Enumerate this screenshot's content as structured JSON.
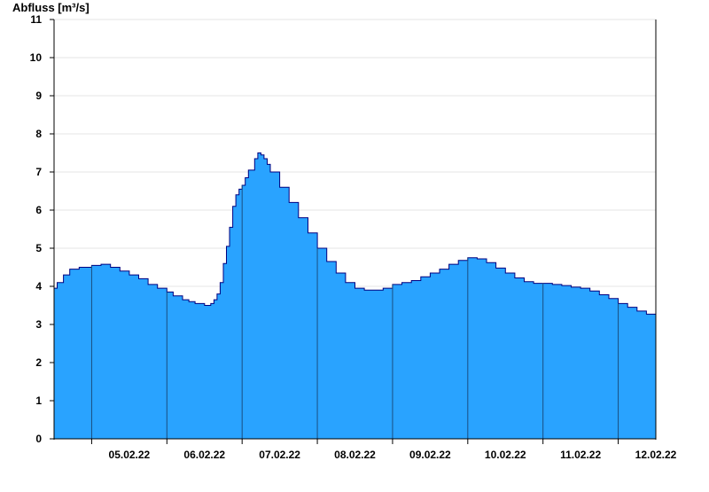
{
  "chart_data": {
    "type": "area",
    "title": "",
    "xlabel": "",
    "ylabel": "Abfluss [m³/s]",
    "ylim": [
      0,
      11
    ],
    "yticks": [
      "0",
      "1",
      "2",
      "3",
      "4",
      "5",
      "6",
      "7",
      "8",
      "9",
      "10",
      "11"
    ],
    "xlim": [
      "2022-02-04T12:00",
      "2022-02-12T12:00"
    ],
    "day_boundaries": [
      "2022-02-05T00:00",
      "2022-02-06T00:00",
      "2022-02-07T00:00",
      "2022-02-08T00:00",
      "2022-02-09T00:00",
      "2022-02-10T00:00",
      "2022-02-11T00:00",
      "2022-02-12T00:00"
    ],
    "xtick_labels": [
      {
        "date": "2022-02-05T00:00",
        "label": "05.02.22"
      },
      {
        "date": "2022-02-06T00:00",
        "label": "06.02.22"
      },
      {
        "date": "2022-02-07T00:00",
        "label": "07.02.22"
      },
      {
        "date": "2022-02-08T00:00",
        "label": "08.02.22"
      },
      {
        "date": "2022-02-09T00:00",
        "label": "09.02.22"
      },
      {
        "date": "2022-02-10T00:00",
        "label": "10.02.22"
      },
      {
        "date": "2022-02-11T00:00",
        "label": "11.02.22"
      },
      {
        "date": "2022-02-12T00:00",
        "label": "12.02.22"
      }
    ],
    "grid": true,
    "fill_color": "#29a3ff",
    "line_color": "#00007f",
    "series": [
      {
        "x": [
          "2022-02-04T12:00",
          "2022-02-04T13:00",
          "2022-02-04T15:00",
          "2022-02-04T17:00",
          "2022-02-04T20:00",
          "2022-02-05T00:00",
          "2022-02-05T03:00",
          "2022-02-05T06:00",
          "2022-02-05T09:00",
          "2022-02-05T12:00",
          "2022-02-05T15:00",
          "2022-02-05T18:00",
          "2022-02-05T21:00",
          "2022-02-06T00:00",
          "2022-02-06T02:00",
          "2022-02-06T05:00",
          "2022-02-06T07:00",
          "2022-02-06T09:00",
          "2022-02-06T12:00",
          "2022-02-06T14:00",
          "2022-02-06T15:00",
          "2022-02-06T16:00",
          "2022-02-06T17:00",
          "2022-02-06T18:00",
          "2022-02-06T19:00",
          "2022-02-06T20:00",
          "2022-02-06T21:00",
          "2022-02-06T22:00",
          "2022-02-06T23:00",
          "2022-02-07T00:00",
          "2022-02-07T01:00",
          "2022-02-07T02:00",
          "2022-02-07T04:00",
          "2022-02-07T05:00",
          "2022-02-07T06:00",
          "2022-02-07T07:00",
          "2022-02-07T08:00",
          "2022-02-07T09:00",
          "2022-02-07T12:00",
          "2022-02-07T15:00",
          "2022-02-07T18:00",
          "2022-02-07T21:00",
          "2022-02-08T00:00",
          "2022-02-08T03:00",
          "2022-02-08T06:00",
          "2022-02-08T09:00",
          "2022-02-08T12:00",
          "2022-02-08T15:00",
          "2022-02-08T18:00",
          "2022-02-08T21:00",
          "2022-02-09T00:00",
          "2022-02-09T03:00",
          "2022-02-09T06:00",
          "2022-02-09T09:00",
          "2022-02-09T12:00",
          "2022-02-09T15:00",
          "2022-02-09T18:00",
          "2022-02-09T21:00",
          "2022-02-10T00:00",
          "2022-02-10T03:00",
          "2022-02-10T06:00",
          "2022-02-10T09:00",
          "2022-02-10T12:00",
          "2022-02-10T15:00",
          "2022-02-10T18:00",
          "2022-02-10T21:00",
          "2022-02-11T00:00",
          "2022-02-11T03:00",
          "2022-02-11T06:00",
          "2022-02-11T09:00",
          "2022-02-11T12:00",
          "2022-02-11T15:00",
          "2022-02-11T18:00",
          "2022-02-11T21:00",
          "2022-02-12T00:00",
          "2022-02-12T03:00",
          "2022-02-12T06:00",
          "2022-02-12T09:00",
          "2022-02-12T12:00"
        ],
        "y": [
          3.95,
          4.1,
          4.3,
          4.45,
          4.5,
          4.55,
          4.58,
          4.5,
          4.4,
          4.3,
          4.2,
          4.05,
          3.95,
          3.85,
          3.75,
          3.65,
          3.6,
          3.55,
          3.5,
          3.55,
          3.65,
          3.8,
          4.1,
          4.6,
          5.05,
          5.55,
          6.1,
          6.4,
          6.55,
          6.65,
          6.85,
          7.05,
          7.35,
          7.5,
          7.45,
          7.35,
          7.2,
          7.0,
          6.6,
          6.2,
          5.8,
          5.4,
          5.0,
          4.65,
          4.35,
          4.1,
          3.95,
          3.9,
          3.9,
          3.95,
          4.05,
          4.1,
          4.15,
          4.25,
          4.35,
          4.45,
          4.58,
          4.68,
          4.75,
          4.72,
          4.62,
          4.48,
          4.35,
          4.22,
          4.12,
          4.08,
          4.08,
          4.05,
          4.02,
          3.98,
          3.95,
          3.88,
          3.78,
          3.68,
          3.55,
          3.45,
          3.35,
          3.27,
          3.2
        ]
      }
    ]
  }
}
